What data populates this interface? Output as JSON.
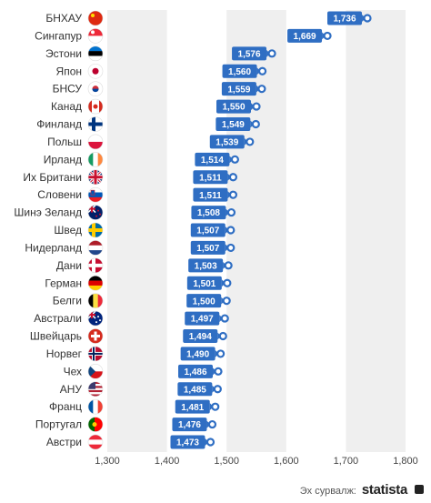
{
  "chart_data": {
    "type": "bar",
    "orientation": "horizontal",
    "categories": [
      "БНХАУ",
      "Сингапур",
      "Эстони",
      "Япон",
      "БНСУ",
      "Канад",
      "Финланд",
      "Польш",
      "Ирланд",
      "Их Британи",
      "Словени",
      "Шинэ Зеланд",
      "Швед",
      "Нидерланд",
      "Дани",
      "Герман",
      "Белги",
      "Австрали",
      "Швейцарь",
      "Норвег",
      "Чех",
      "АНУ",
      "Франц",
      "Португал",
      "Австри"
    ],
    "values": [
      1736,
      1669,
      1576,
      1560,
      1559,
      1550,
      1549,
      1539,
      1514,
      1511,
      1511,
      1508,
      1507,
      1507,
      1503,
      1501,
      1500,
      1497,
      1494,
      1490,
      1486,
      1485,
      1481,
      1476,
      1473
    ],
    "value_labels": [
      "1,736",
      "1,669",
      "1,576",
      "1,560",
      "1,559",
      "1,550",
      "1,549",
      "1,539",
      "1,514",
      "1,511",
      "1,511",
      "1,508",
      "1,507",
      "1,507",
      "1,503",
      "1,501",
      "1,500",
      "1,497",
      "1,494",
      "1,490",
      "1,486",
      "1,485",
      "1,481",
      "1,476",
      "1,473"
    ],
    "flag_icons": [
      "china-flag-icon",
      "singapore-flag-icon",
      "estonia-flag-icon",
      "japan-flag-icon",
      "south-korea-flag-icon",
      "canada-flag-icon",
      "finland-flag-icon",
      "poland-flag-icon",
      "ireland-flag-icon",
      "uk-flag-icon",
      "slovenia-flag-icon",
      "new-zealand-flag-icon",
      "sweden-flag-icon",
      "netherlands-flag-icon",
      "denmark-flag-icon",
      "germany-flag-icon",
      "belgium-flag-icon",
      "australia-flag-icon",
      "switzerland-flag-icon",
      "norway-flag-icon",
      "czech-flag-icon",
      "usa-flag-icon",
      "france-flag-icon",
      "portugal-flag-icon",
      "austria-flag-icon"
    ],
    "xlim": [
      1300,
      1800
    ],
    "x_ticks": [
      1300,
      1400,
      1500,
      1600,
      1700,
      1800
    ],
    "x_tick_labels": [
      "1,300",
      "1,400",
      "1,500",
      "1,600",
      "1,700",
      "1,800"
    ],
    "grid": true,
    "bar_color": "#2f6ec3",
    "marker_color": "#2f6ec3",
    "band_color": "#efefef"
  },
  "source": {
    "label": "Эх сурвалж:",
    "brand": "statista"
  }
}
